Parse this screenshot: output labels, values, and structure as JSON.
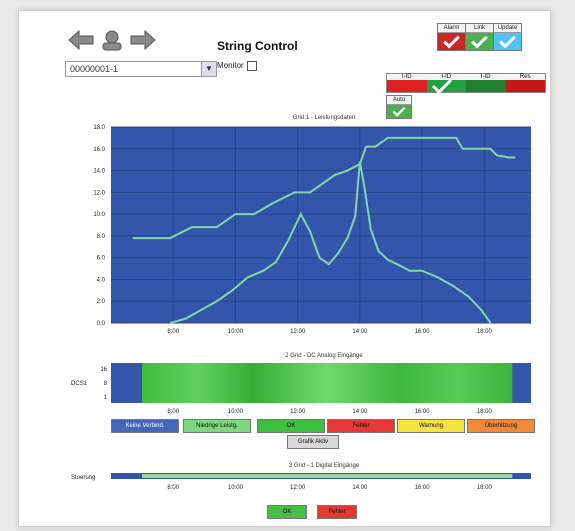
{
  "header": {
    "title": "String Control",
    "monitor_label": "Monitor",
    "dropdown_value": "00000001-1"
  },
  "badges": [
    {
      "label": "Alarm",
      "color": "#c82828",
      "icon": "check-mark-icon"
    },
    {
      "label": "Link",
      "color": "#4caf50",
      "icon": "check-mark-icon"
    },
    {
      "label": "Update",
      "color": "#4fc3f7",
      "icon": "check-mark-icon"
    }
  ],
  "status_cells": [
    {
      "label": "I-ID",
      "color": "#e02020"
    },
    {
      "label": "I-ID",
      "color": "#20a040"
    },
    {
      "label": "I-ID",
      "color": "#208030"
    },
    {
      "label": "Res",
      "color": "#c01818"
    }
  ],
  "small_badge": {
    "label": "Auto",
    "color": "#4caf50",
    "icon": "check-mark-icon"
  },
  "chart_data": {
    "type": "line",
    "title": "Grid 1 - Leistungsdaten",
    "x_ticks": [
      "8:00",
      "10:00",
      "12:00",
      "14:00",
      "16:00",
      "18:00"
    ],
    "y_ticks": [
      "0.0",
      "2.0",
      "4.0",
      "6.0",
      "8.0",
      "10.0",
      "12.0",
      "14.0",
      "16.0",
      "18.0"
    ],
    "xlim": [
      6,
      19.5
    ],
    "ylim": [
      0,
      18
    ],
    "grid": true,
    "colors": {
      "bg": "#3355aa",
      "series": "#7fd6a8"
    },
    "series": [
      {
        "x": [
          6.7,
          7.2,
          7.9,
          8.6,
          9.1,
          9.4,
          10.0,
          10.6,
          11.2,
          11.9,
          12.4,
          12.8,
          13.2,
          13.6,
          14.0,
          14.2,
          14.5,
          14.9,
          15.3,
          16.1,
          16.6,
          17.1,
          17.3,
          17.5,
          18.2,
          18.4,
          18.8,
          19.0
        ],
        "y": [
          7.8,
          7.8,
          7.8,
          8.8,
          8.8,
          8.8,
          10.0,
          10.0,
          11.0,
          12.0,
          12.0,
          12.8,
          13.6,
          14.0,
          14.6,
          16.2,
          16.2,
          17.0,
          17.0,
          17.0,
          17.0,
          17.0,
          16.0,
          16.0,
          16.0,
          15.4,
          15.2,
          15.2
        ]
      },
      {
        "x": [
          7.9,
          8.4,
          8.9,
          9.4,
          9.9,
          10.4,
          10.9,
          11.3,
          11.7,
          12.1,
          12.4,
          12.7,
          13.0,
          13.3,
          13.6,
          13.85,
          14.0,
          14.15,
          14.35,
          14.6,
          14.9,
          15.2,
          15.6,
          16.0,
          16.5,
          17.0,
          17.5,
          17.9,
          18.2
        ],
        "y": [
          0.0,
          0.4,
          1.2,
          2.0,
          3.0,
          4.2,
          4.8,
          5.6,
          7.6,
          10.0,
          8.4,
          6.0,
          5.4,
          6.4,
          7.8,
          9.8,
          14.8,
          12.4,
          8.6,
          6.6,
          5.8,
          5.4,
          4.8,
          4.8,
          4.2,
          3.4,
          2.4,
          1.2,
          0.0
        ]
      }
    ]
  },
  "heatmap": {
    "title": "2 Grid - DC Analog Eingänge",
    "y_label": "DCS1",
    "y_ticks": [
      "16",
      "8",
      "1"
    ],
    "x_ticks": [
      "8:00",
      "10:00",
      "12:00",
      "14:00",
      "16:00",
      "18:00"
    ],
    "colors": {
      "bg": "#3355aa",
      "fill": "#41b84a"
    }
  },
  "legend": [
    {
      "label": "Keine Verbind.",
      "color": "#4466bb",
      "text_color": "#ffffff"
    },
    {
      "label": "Niedrige Leistg.",
      "color": "#7ed67e",
      "text_color": "#111111"
    },
    {
      "label": "OK",
      "color": "#3fbf3f",
      "text_color": "#111111"
    },
    {
      "label": "Fehler",
      "color": "#e53935",
      "text_color": "#111111"
    },
    {
      "label": "Warnung",
      "color": "#f5e342",
      "text_color": "#111111"
    },
    {
      "label": "Überhitzung",
      "color": "#ef8a3a",
      "text_color": "#111111"
    }
  ],
  "extra_button": "Grafik Aktiv",
  "strip": {
    "title": "3 Grid - 1 Digital Eingänge",
    "y_label": "Stoerung",
    "x_ticks": [
      "8:00",
      "10:00",
      "12:00",
      "14:00",
      "16:00",
      "18:00"
    ]
  },
  "bottom_buttons": [
    {
      "label": "OK",
      "color": "#45c045"
    },
    {
      "label": "Fehler",
      "color": "#e53935"
    }
  ]
}
